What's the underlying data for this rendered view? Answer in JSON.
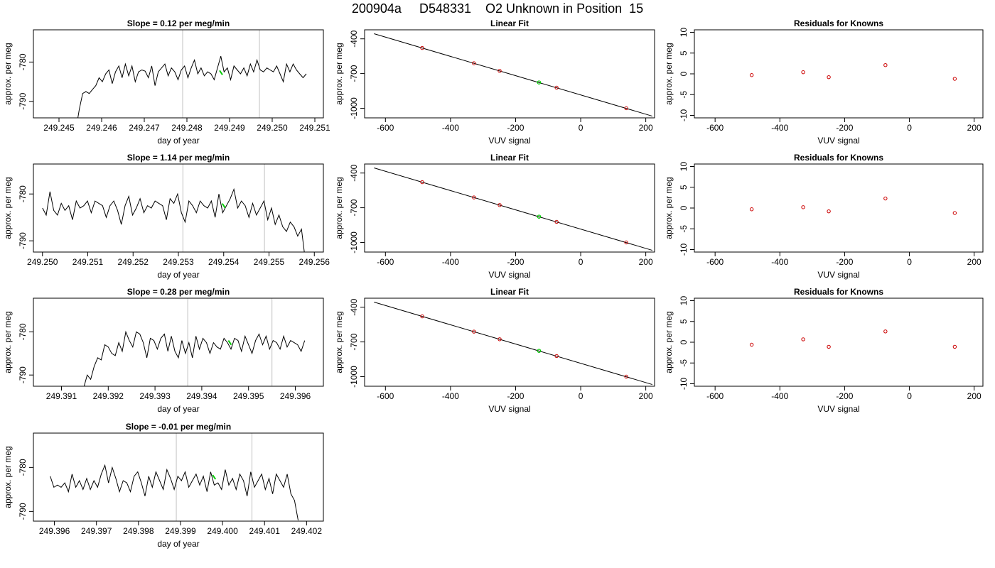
{
  "page_title": "200904a     D548331    O2 Unknown in Position  15",
  "chart_data": [
    {
      "type": "line",
      "panel": "time-series",
      "title": "Slope =  0.12  per meg/min",
      "xlabel": "day of year",
      "ylabel": "approx. per meg",
      "xlim": [
        249.2444,
        249.2512
      ],
      "ylim": [
        -794.2,
        -771.8
      ],
      "xticks": [
        "249.245",
        "249.246",
        "249.247",
        "249.248",
        "249.249",
        "249.250",
        "249.251"
      ],
      "yticks": [
        -790,
        -780
      ],
      "vlines": [
        249.2479,
        249.2497
      ],
      "vline_color": "#cccccc",
      "line_color": "#000000",
      "marker_color": "#00cc00",
      "marker": {
        "x": 249.2488,
        "y": -782.7
      },
      "series": [
        {
          "x_start": 249.2454,
          "x_end": 249.2508,
          "values": [
            -797,
            -792,
            -788,
            -787.5,
            -788,
            -787,
            -786,
            -784,
            -785,
            -783,
            -782,
            -785.5,
            -782.5,
            -781,
            -784,
            -780.5,
            -783.5,
            -781,
            -785,
            -782.5,
            -782,
            -782.3,
            -784,
            -781,
            -786,
            -782.5,
            -781.5,
            -780.5,
            -783.5,
            -781.5,
            -782.5,
            -784.5,
            -782,
            -781,
            -784,
            -781.5,
            -779.5,
            -783,
            -781.5,
            -783.5,
            -782.5,
            -783,
            -784.5,
            -781.5,
            -778.5,
            -782.5,
            -781.5,
            -784.5,
            -781,
            -782,
            -783,
            -781.5,
            -783.5,
            -780.5,
            -782.5,
            -779.5,
            -782,
            -782.5,
            -781.5,
            -782,
            -782.5,
            -781,
            -783,
            -785,
            -780.5,
            -782.5,
            -780.5,
            -782,
            -783,
            -784,
            -783
          ]
        }
      ]
    },
    {
      "type": "scatter",
      "panel": "linear-fit",
      "title": "Linear Fit",
      "xlabel": "VUV signal",
      "ylabel": "approx. per meg",
      "xlim": [
        -664,
        227
      ],
      "ylim": [
        -1083,
        -322
      ],
      "xticks": [
        -600,
        -400,
        -200,
        0,
        200
      ],
      "yticks": [
        -400,
        -700,
        -1000
      ],
      "line": {
        "x": [
          -635,
          220
        ],
        "y": [
          -356,
          -1068
        ]
      },
      "points": {
        "x": [
          -487,
          -328,
          -249,
          -74,
          140
        ],
        "y": [
          -479,
          -611,
          -677,
          -822,
          -1000
        ]
      },
      "unknown_point": {
        "x": -128,
        "y": -777
      },
      "point_color": "#cc0000",
      "unknown_color": "#00cc00"
    },
    {
      "type": "scatter",
      "panel": "residuals",
      "title": "Residuals for Knowns",
      "xlabel": "VUV signal",
      "ylabel": "approx. per meg",
      "xlim": [
        -664,
        227
      ],
      "ylim": [
        -10.6,
        10.6
      ],
      "xticks": [
        -600,
        -400,
        -200,
        0,
        200
      ],
      "yticks": [
        -10,
        -5,
        0,
        5,
        10
      ],
      "points": {
        "x": [
          -487,
          -328,
          -249,
          -74,
          140
        ],
        "y": [
          -0.3,
          0.4,
          -0.8,
          2.1,
          -1.2
        ]
      },
      "point_color": "#cc0000"
    },
    {
      "type": "line",
      "panel": "time-series",
      "title": "Slope =  1.14  per meg/min",
      "xlabel": "day of year",
      "ylabel": "approx. per meg",
      "xlim": [
        249.2498,
        249.2562
      ],
      "ylim": [
        -792.4,
        -773.6
      ],
      "xticks": [
        "249.250",
        "249.251",
        "249.252",
        "249.253",
        "249.254",
        "249.255",
        "249.256"
      ],
      "yticks": [
        -790,
        -780
      ],
      "vlines": [
        249.2531,
        249.2549
      ],
      "vline_color": "#cccccc",
      "line_color": "#000000",
      "marker_color": "#00cc00",
      "marker": {
        "x": 249.254,
        "y": -782.5
      },
      "series": [
        {
          "x_start": 249.25,
          "x_end": 249.2558,
          "values": [
            -783,
            -784.5,
            -779.5,
            -783.5,
            -784.5,
            -782,
            -783.5,
            -782.5,
            -785.5,
            -781.5,
            -783,
            -782.5,
            -781.5,
            -784,
            -781.5,
            -782,
            -782.5,
            -785,
            -782.5,
            -781.5,
            -783.5,
            -786.5,
            -782.5,
            -780.5,
            -784.5,
            -783,
            -781,
            -784,
            -782.5,
            -783,
            -781.5,
            -782,
            -782.5,
            -785.5,
            -781,
            -782,
            -780,
            -784,
            -786,
            -781.5,
            -782.5,
            -784,
            -781.5,
            -782.5,
            -783,
            -781.5,
            -785,
            -780,
            -784,
            -782.5,
            -781,
            -779,
            -783,
            -781.5,
            -782.5,
            -785,
            -782,
            -784.5,
            -783,
            -781.5,
            -785.5,
            -783,
            -786.5,
            -784.5,
            -787,
            -788,
            -786,
            -787,
            -789,
            -787.5,
            -794
          ]
        }
      ]
    },
    {
      "type": "scatter",
      "panel": "linear-fit",
      "title": "Linear Fit",
      "xlabel": "VUV signal",
      "ylabel": "approx. per meg",
      "xlim": [
        -664,
        227
      ],
      "ylim": [
        -1083,
        -322
      ],
      "xticks": [
        -600,
        -400,
        -200,
        0,
        200
      ],
      "yticks": [
        -400,
        -700,
        -1000
      ],
      "line": {
        "x": [
          -635,
          220
        ],
        "y": [
          -356,
          -1068
        ]
      },
      "points": {
        "x": [
          -487,
          -328,
          -249,
          -74,
          140
        ],
        "y": [
          -479,
          -611,
          -677,
          -822,
          -1000
        ]
      },
      "unknown_point": {
        "x": -128,
        "y": -777
      },
      "point_color": "#cc0000",
      "unknown_color": "#00cc00"
    },
    {
      "type": "scatter",
      "panel": "residuals",
      "title": "Residuals for Knowns",
      "xlabel": "VUV signal",
      "ylabel": "approx. per meg",
      "xlim": [
        -664,
        227
      ],
      "ylim": [
        -10.6,
        10.6
      ],
      "xticks": [
        -600,
        -400,
        -200,
        0,
        200
      ],
      "yticks": [
        -10,
        -5,
        0,
        5,
        10
      ],
      "points": {
        "x": [
          -487,
          -328,
          -249,
          -74,
          140
        ],
        "y": [
          -0.3,
          0.2,
          -0.8,
          2.3,
          -1.2
        ]
      },
      "point_color": "#cc0000"
    },
    {
      "type": "line",
      "panel": "time-series",
      "title": "Slope =  0.28  per meg/min",
      "xlabel": "day of year",
      "ylabel": "approx. per meg",
      "xlim": [
        249.3904,
        249.3966
      ],
      "ylim": [
        -792.6,
        -772.2
      ],
      "xticks": [
        "249.391",
        "249.392",
        "249.393",
        "249.394",
        "249.395",
        "249.396"
      ],
      "yticks": [
        -790,
        -780
      ],
      "vlines": [
        249.3937,
        249.3955
      ],
      "vline_color": "#cccccc",
      "line_color": "#000000",
      "marker_color": "#00cc00",
      "marker": {
        "x": 249.3946,
        "y": -782.5
      },
      "series": [
        {
          "x_start": 249.3914,
          "x_end": 249.3962,
          "values": [
            -796,
            -793,
            -790,
            -791,
            -788,
            -786,
            -786.5,
            -783,
            -783.5,
            -785,
            -785.5,
            -782.5,
            -784.5,
            -780,
            -782,
            -783.5,
            -780,
            -780.5,
            -782.5,
            -786,
            -781.5,
            -782,
            -784,
            -781.5,
            -780.5,
            -784.5,
            -781,
            -784.5,
            -786,
            -782,
            -785,
            -782.5,
            -786,
            -781,
            -784,
            -781.5,
            -782.5,
            -785,
            -782.5,
            -783.5,
            -784,
            -781.5,
            -782.5,
            -784,
            -781.5,
            -782,
            -784.5,
            -781,
            -783,
            -785,
            -782,
            -780.5,
            -783,
            -781,
            -784,
            -782,
            -782.5,
            -784,
            -781,
            -783.5,
            -782,
            -782.5,
            -783,
            -784.5,
            -782
          ]
        }
      ]
    },
    {
      "type": "scatter",
      "panel": "linear-fit",
      "title": "Linear Fit",
      "xlabel": "VUV signal",
      "ylabel": "approx. per meg",
      "xlim": [
        -664,
        227
      ],
      "ylim": [
        -1083,
        -322
      ],
      "xticks": [
        -600,
        -400,
        -200,
        0,
        200
      ],
      "yticks": [
        -400,
        -700,
        -1000
      ],
      "line": {
        "x": [
          -635,
          220
        ],
        "y": [
          -356,
          -1068
        ]
      },
      "points": {
        "x": [
          -487,
          -328,
          -249,
          -74,
          140
        ],
        "y": [
          -479,
          -611,
          -677,
          -822,
          -1000
        ]
      },
      "unknown_point": {
        "x": -128,
        "y": -777
      },
      "point_color": "#cc0000",
      "unknown_color": "#00cc00"
    },
    {
      "type": "scatter",
      "panel": "residuals",
      "title": "Residuals for Knowns",
      "xlabel": "VUV signal",
      "ylabel": "approx. per meg",
      "xlim": [
        -664,
        227
      ],
      "ylim": [
        -10.6,
        10.6
      ],
      "xticks": [
        -600,
        -400,
        -200,
        0,
        200
      ],
      "yticks": [
        -10,
        -5,
        0,
        5,
        10
      ],
      "points": {
        "x": [
          -487,
          -328,
          -249,
          -74,
          140
        ],
        "y": [
          -0.6,
          0.7,
          -1.1,
          2.6,
          -1.1
        ]
      },
      "point_color": "#cc0000"
    },
    {
      "type": "line",
      "panel": "time-series",
      "title": "Slope =  -0.01  per meg/min",
      "xlabel": "day of year",
      "ylabel": "approx. per meg",
      "xlim": [
        249.3955,
        249.4024
      ],
      "ylim": [
        -792.2,
        -772.2
      ],
      "xticks": [
        "249.396",
        "249.397",
        "249.398",
        "249.399",
        "249.400",
        "249.401",
        "249.402"
      ],
      "yticks": [
        -790,
        -780
      ],
      "vlines": [
        249.3989,
        249.4007
      ],
      "vline_color": "#cccccc",
      "line_color": "#000000",
      "marker_color": "#00cc00",
      "marker": {
        "x": 249.3998,
        "y": -782.2
      },
      "series": [
        {
          "x_start": 249.3959,
          "x_end": 249.4018,
          "values": [
            -782,
            -784.5,
            -784,
            -784.5,
            -783.5,
            -785.5,
            -781.5,
            -784.5,
            -783,
            -785,
            -782.5,
            -785,
            -783,
            -784.5,
            -781.5,
            -779.5,
            -783.5,
            -780,
            -782.5,
            -785.5,
            -783,
            -783.5,
            -785.5,
            -782,
            -781,
            -783.5,
            -786.5,
            -782,
            -784.5,
            -781,
            -783,
            -785,
            -780.5,
            -782.5,
            -785,
            -782,
            -783,
            -781,
            -784.5,
            -783,
            -781.5,
            -784,
            -782,
            -785.5,
            -781,
            -784,
            -783.5,
            -785,
            -780.5,
            -784,
            -782.5,
            -785,
            -781.5,
            -783,
            -786.5,
            -781,
            -784.5,
            -783,
            -781.5,
            -785,
            -782.5,
            -786,
            -781.5,
            -783,
            -784.5,
            -781.5,
            -786,
            -787.5,
            -792
          ]
        }
      ]
    }
  ]
}
